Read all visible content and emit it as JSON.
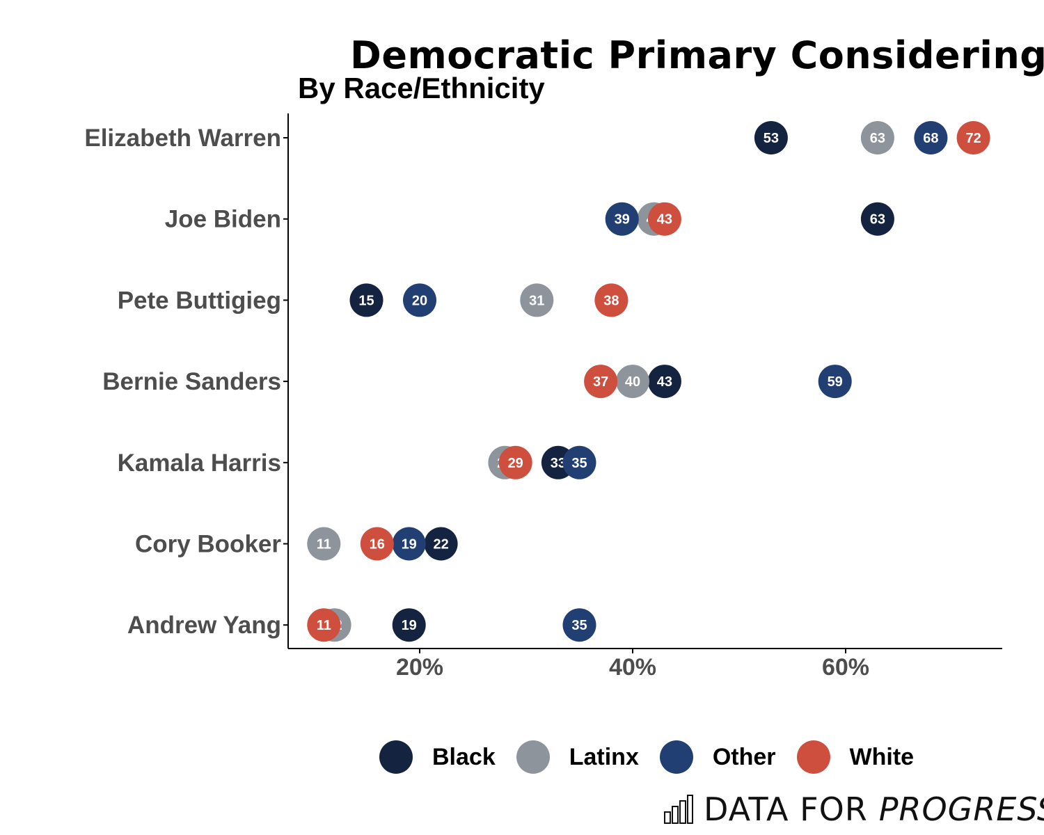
{
  "chart_data": {
    "type": "scatter",
    "title": "Democratic Primary Considering",
    "subtitle": "By Race/Ethnicity",
    "xlabel": "",
    "ylabel": "",
    "xlim": [
      8,
      75
    ],
    "x_ticks": [
      20,
      40,
      60
    ],
    "x_tick_labels": [
      "20%",
      "40%",
      "60%"
    ],
    "categories": [
      "Elizabeth Warren",
      "Joe Biden",
      "Pete Buttigieg",
      "Bernie Sanders",
      "Kamala Harris",
      "Cory Booker",
      "Andrew Yang"
    ],
    "series": [
      {
        "name": "Black",
        "color": "#14233f",
        "values": [
          53,
          63,
          15,
          43,
          33,
          22,
          19
        ]
      },
      {
        "name": "Latinx",
        "color": "#8e949b",
        "values": [
          63,
          42,
          31,
          40,
          28,
          11,
          12
        ]
      },
      {
        "name": "Other",
        "color": "#213f73",
        "values": [
          68,
          39,
          20,
          59,
          35,
          19,
          35
        ]
      },
      {
        "name": "White",
        "color": "#cf4f3e",
        "values": [
          72,
          43,
          38,
          37,
          29,
          16,
          11
        ]
      }
    ],
    "grid": false,
    "legend_position": "bottom"
  },
  "legend": {
    "items": [
      {
        "label": "Black",
        "color": "#14233f"
      },
      {
        "label": "Latinx",
        "color": "#8e949b"
      },
      {
        "label": "Other",
        "color": "#213f73"
      },
      {
        "label": "White",
        "color": "#cf4f3e"
      }
    ]
  },
  "brand": {
    "part1": "DATA FOR",
    "part2": "PROGRESS",
    "icon": "bar-chart-logo-icon"
  }
}
